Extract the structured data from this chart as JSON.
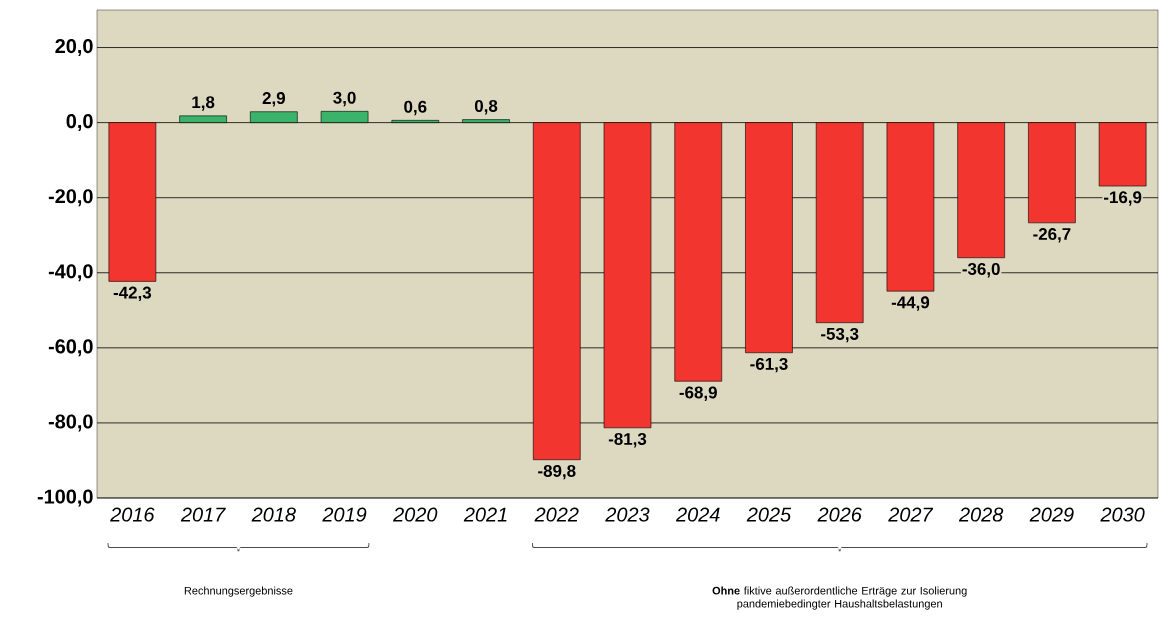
{
  "chart_data": {
    "type": "bar",
    "categories": [
      "2016",
      "2017",
      "2018",
      "2019",
      "2020",
      "2021",
      "2022",
      "2023",
      "2024",
      "2025",
      "2026",
      "2027",
      "2028",
      "2029",
      "2030"
    ],
    "values": [
      -42.3,
      1.8,
      2.9,
      3.0,
      0.6,
      0.8,
      -89.8,
      -81.3,
      -68.9,
      -61.3,
      -53.3,
      -44.9,
      -36.0,
      -26.7,
      -16.9
    ],
    "value_labels": [
      "-42,3",
      "1,8",
      "2,9",
      "3,0",
      "0,6",
      "0,8",
      "-89,8",
      "-81,3",
      "-68,9",
      "-61,3",
      "-53,3",
      "-44,9",
      "-36,0",
      "-26,7",
      "-16,9"
    ],
    "colors": [
      "#f33530",
      "#3cb36a",
      "#3cb36a",
      "#3cb36a",
      "#3cb36a",
      "#3cb36a",
      "#f33530",
      "#f33530",
      "#f33530",
      "#f33530",
      "#f33530",
      "#f33530",
      "#f33530",
      "#f33530",
      "#f33530"
    ],
    "ylim": [
      -100,
      30
    ],
    "yticks": [
      {
        "value": -100,
        "label": "-100,0"
      },
      {
        "value": -80,
        "label": "-80,0"
      },
      {
        "value": -60,
        "label": "-60,0"
      },
      {
        "value": -40,
        "label": "-40,0"
      },
      {
        "value": -20,
        "label": "-20,0"
      },
      {
        "value": 0,
        "label": "0,0"
      },
      {
        "value": 20,
        "label": "20,0"
      }
    ],
    "grid": "y",
    "annotations": [
      "Rechnungsergebnisse",
      "**Ohne** fiktive außerordentliche Erträge zur Isolierung pandemiebedingter Haushaltsbelastungen"
    ]
  }
}
